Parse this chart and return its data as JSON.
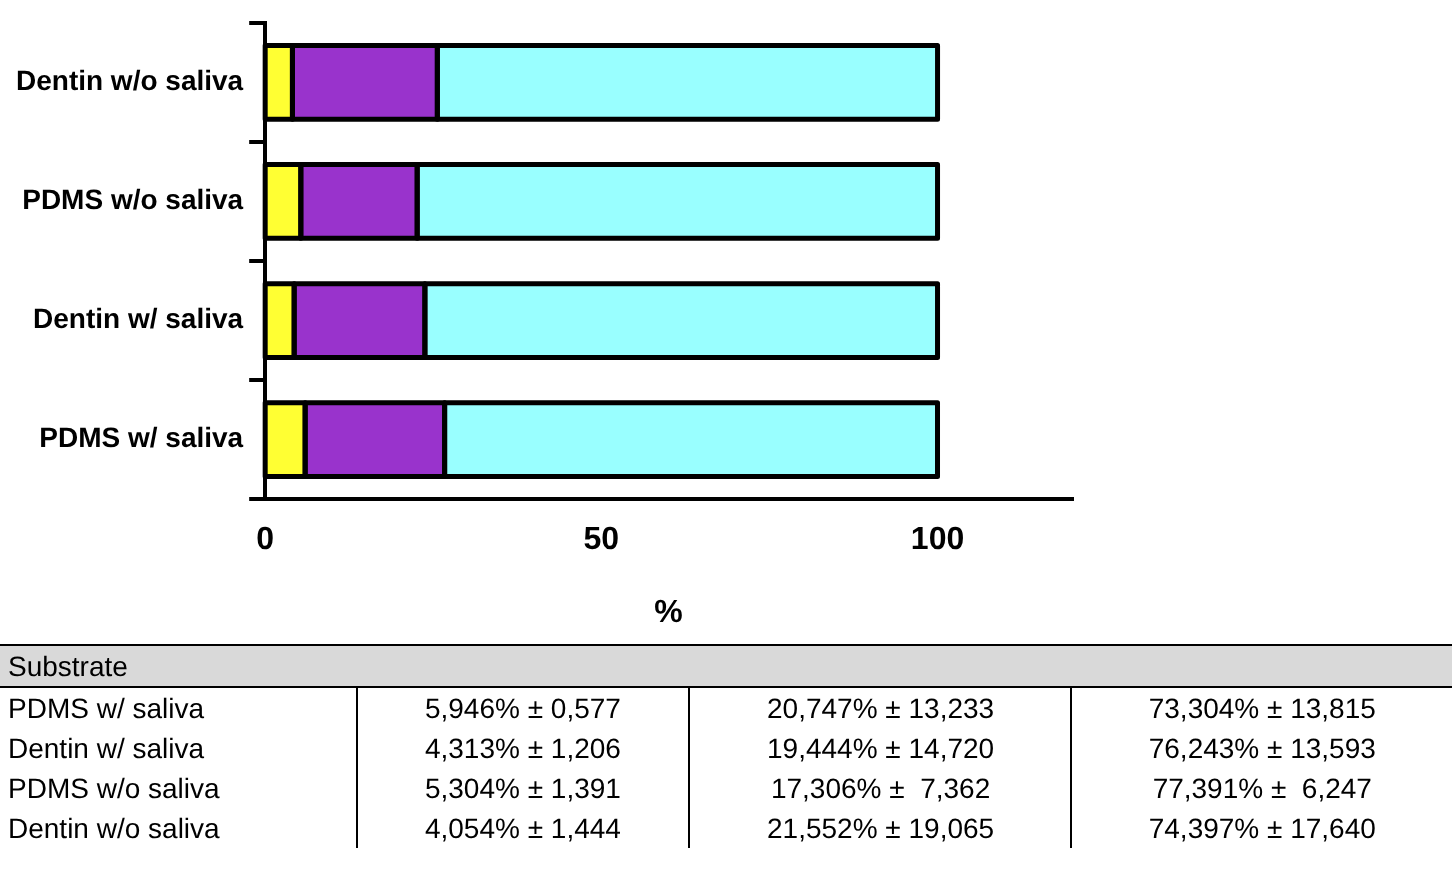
{
  "chart_data": {
    "type": "bar",
    "orientation": "horizontal",
    "stacked": true,
    "xlabel": "%",
    "categories": [
      "Dentin w/o saliva",
      "PDMS w/o saliva",
      "Dentin w/ saliva",
      "PDMS w/ saliva"
    ],
    "series": [
      {
        "color": "#ffff33",
        "values": [
          4.054,
          5.304,
          4.313,
          5.946
        ]
      },
      {
        "color": "#9933cc",
        "values": [
          21.552,
          17.306,
          19.444,
          20.747
        ]
      },
      {
        "color": "#99ffff",
        "values": [
          74.397,
          77.391,
          76.243,
          73.304
        ]
      }
    ],
    "xlim": [
      0,
      120
    ],
    "xticks": [
      0,
      50,
      100
    ],
    "grid": false,
    "legend": false,
    "annotations": [
      "Substrate",
      "5,946% ± 0,577",
      "20,747% ± 13,233",
      "73,304% ± 13,815",
      "4,313% ± 1,206",
      "19,444% ± 14,720",
      "76,243% ± 13,593",
      "5,304% ± 1,391",
      "17,306% ±  7,362",
      "77,391% ±  6,247",
      "4,054% ± 1,444",
      "21,552% ± 19,065",
      "74,397% ± 17,640"
    ]
  }
}
